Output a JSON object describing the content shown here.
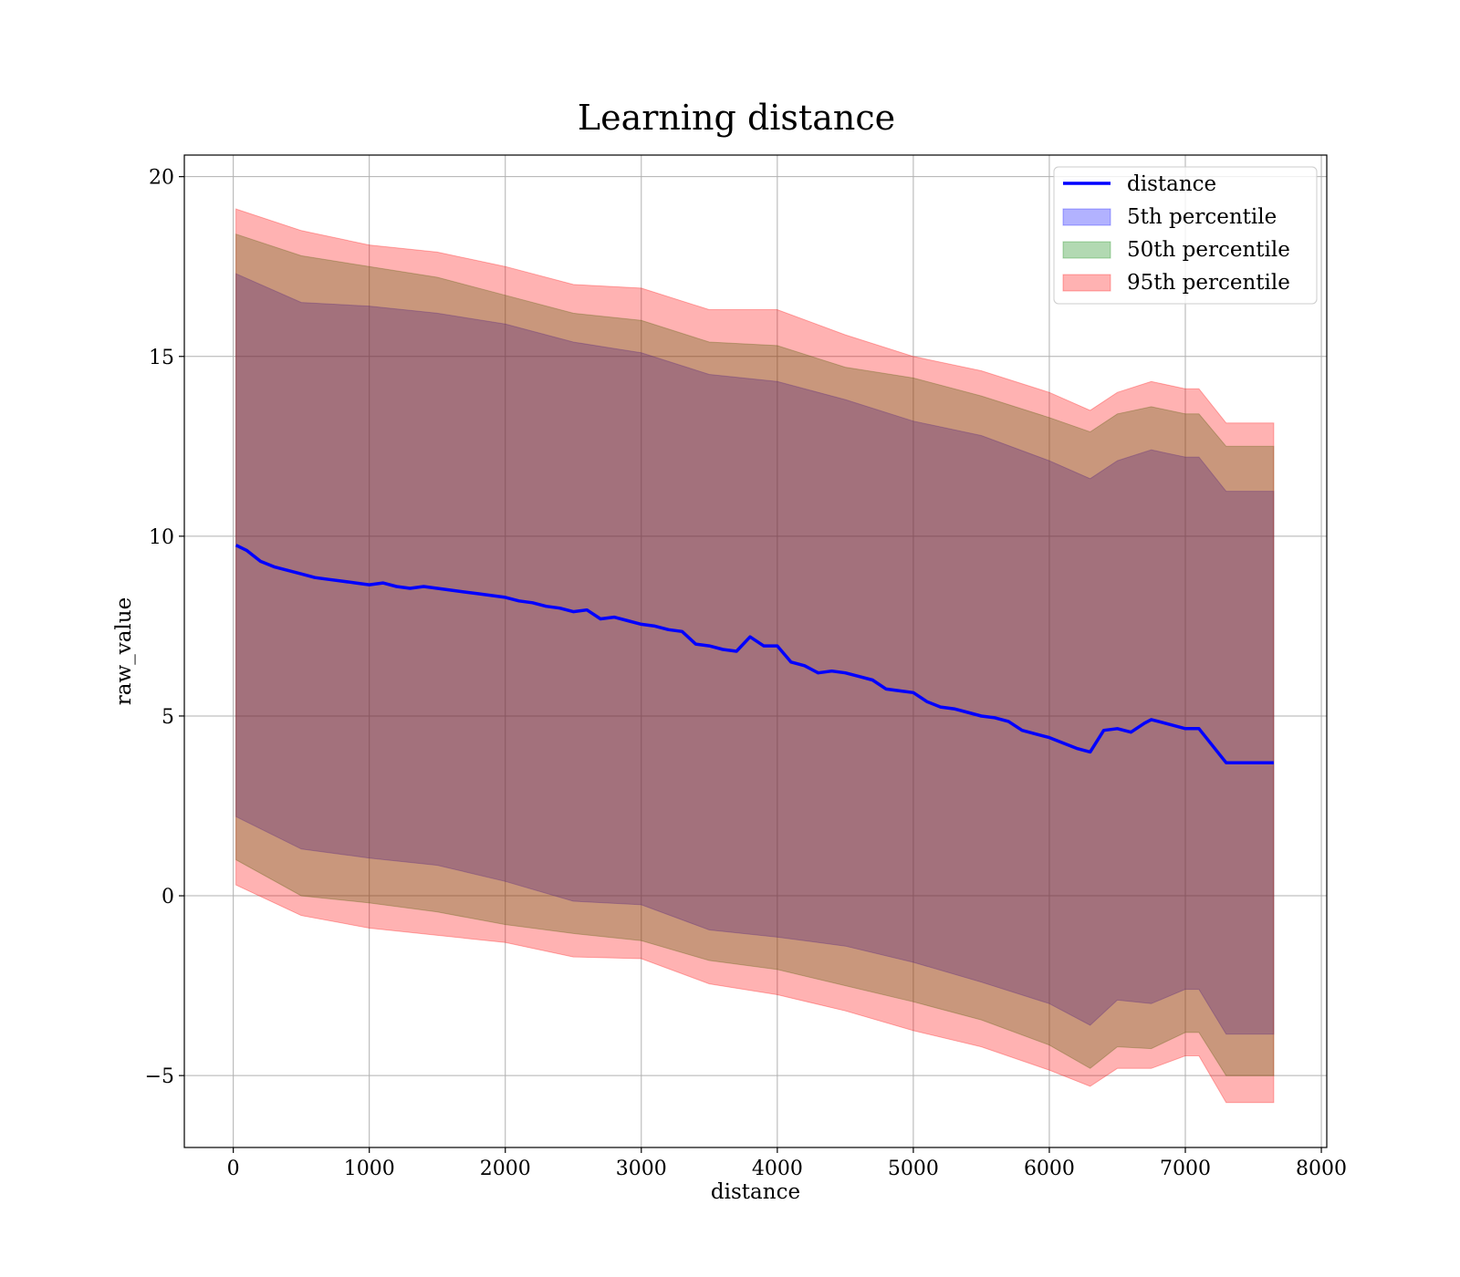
{
  "chart_data": {
    "type": "line",
    "title": "Learning distance",
    "xlabel": "distance",
    "ylabel": "raw_value",
    "xlim": [
      -360,
      8040
    ],
    "ylim": [
      -7,
      20.6
    ],
    "xticks": [
      0,
      1000,
      2000,
      3000,
      4000,
      5000,
      6000,
      7000,
      8000
    ],
    "yticks": [
      -5,
      0,
      5,
      10,
      15,
      20
    ],
    "ytick_labels": [
      "−5",
      "0",
      "5",
      "10",
      "15",
      "20"
    ],
    "grid": true,
    "legend_position": "top-right",
    "line": {
      "name": "distance",
      "color": "#0000ff",
      "x": [
        20,
        100,
        200,
        300,
        400,
        500,
        600,
        700,
        800,
        900,
        1000,
        1100,
        1200,
        1300,
        1400,
        1500,
        1600,
        1700,
        1800,
        1900,
        2000,
        2100,
        2200,
        2300,
        2400,
        2500,
        2600,
        2700,
        2800,
        2900,
        3000,
        3100,
        3200,
        3300,
        3400,
        3500,
        3600,
        3700,
        3800,
        3900,
        4000,
        4100,
        4200,
        4300,
        4400,
        4500,
        4600,
        4700,
        4800,
        4900,
        5000,
        5100,
        5200,
        5300,
        5400,
        5500,
        5600,
        5700,
        5800,
        5900,
        6000,
        6100,
        6200,
        6300,
        6400,
        6500,
        6600,
        6700,
        6750,
        6900,
        7000,
        7100,
        7300,
        7650
      ],
      "y": [
        9.75,
        9.6,
        9.3,
        9.15,
        9.05,
        8.95,
        8.85,
        8.8,
        8.75,
        8.7,
        8.65,
        8.7,
        8.6,
        8.55,
        8.6,
        8.55,
        8.5,
        8.45,
        8.4,
        8.35,
        8.3,
        8.2,
        8.15,
        8.05,
        8.0,
        7.9,
        7.95,
        7.7,
        7.75,
        7.65,
        7.55,
        7.5,
        7.4,
        7.35,
        7.0,
        6.95,
        6.85,
        6.8,
        7.2,
        6.95,
        6.95,
        6.5,
        6.4,
        6.2,
        6.25,
        6.2,
        6.1,
        6.0,
        5.75,
        5.7,
        5.65,
        5.4,
        5.25,
        5.2,
        5.1,
        5.0,
        4.95,
        4.85,
        4.6,
        4.5,
        4.4,
        4.25,
        4.1,
        4.0,
        4.6,
        4.65,
        4.55,
        4.8,
        4.9,
        4.75,
        4.65,
        4.65,
        3.7,
        3.7
      ]
    },
    "bands": [
      {
        "name": "5th percentile",
        "color": "#0000ff",
        "alpha": 0.3,
        "x": [
          20,
          500,
          1000,
          1500,
          2000,
          2500,
          3000,
          3500,
          4000,
          4500,
          5000,
          5500,
          6000,
          6300,
          6500,
          6750,
          7000,
          7100,
          7300,
          7650
        ],
        "upper": [
          17.3,
          16.5,
          16.4,
          16.2,
          15.9,
          15.4,
          15.1,
          14.5,
          14.3,
          13.8,
          13.2,
          12.8,
          12.1,
          11.6,
          12.1,
          12.4,
          12.2,
          12.2,
          11.25,
          11.25
        ],
        "lower": [
          2.2,
          1.3,
          1.05,
          0.85,
          0.4,
          -0.15,
          -0.25,
          -0.95,
          -1.15,
          -1.4,
          -1.85,
          -2.4,
          -3.0,
          -3.6,
          -2.9,
          -3.0,
          -2.6,
          -2.6,
          -3.85,
          -3.85
        ]
      },
      {
        "name": "50th percentile",
        "color": "#008000",
        "alpha": 0.3,
        "x": [
          20,
          500,
          1000,
          1500,
          2000,
          2500,
          3000,
          3500,
          4000,
          4500,
          5000,
          5500,
          6000,
          6300,
          6500,
          6750,
          7000,
          7100,
          7300,
          7650
        ],
        "upper": [
          18.4,
          17.8,
          17.5,
          17.2,
          16.7,
          16.2,
          16.0,
          15.4,
          15.3,
          14.7,
          14.4,
          13.9,
          13.3,
          12.9,
          13.4,
          13.6,
          13.4,
          13.4,
          12.5,
          12.5
        ],
        "lower": [
          1.0,
          0.0,
          -0.2,
          -0.45,
          -0.8,
          -1.05,
          -1.25,
          -1.8,
          -2.05,
          -2.5,
          -2.95,
          -3.45,
          -4.15,
          -4.8,
          -4.2,
          -4.25,
          -3.8,
          -3.8,
          -5.0,
          -5.0
        ]
      },
      {
        "name": "95th percentile",
        "color": "#ff0000",
        "alpha": 0.3,
        "x": [
          20,
          500,
          1000,
          1500,
          2000,
          2500,
          3000,
          3500,
          4000,
          4500,
          5000,
          5500,
          6000,
          6300,
          6500,
          6750,
          7000,
          7100,
          7300,
          7650
        ],
        "upper": [
          19.1,
          18.5,
          18.1,
          17.9,
          17.5,
          17.0,
          16.9,
          16.3,
          16.3,
          15.6,
          15.0,
          14.6,
          14.0,
          13.5,
          14.0,
          14.3,
          14.1,
          14.1,
          13.15,
          13.15
        ],
        "lower": [
          0.3,
          -0.55,
          -0.9,
          -1.1,
          -1.3,
          -1.7,
          -1.75,
          -2.45,
          -2.75,
          -3.2,
          -3.75,
          -4.2,
          -4.85,
          -5.3,
          -4.8,
          -4.8,
          -4.45,
          -4.45,
          -5.75,
          -5.75
        ]
      }
    ]
  }
}
